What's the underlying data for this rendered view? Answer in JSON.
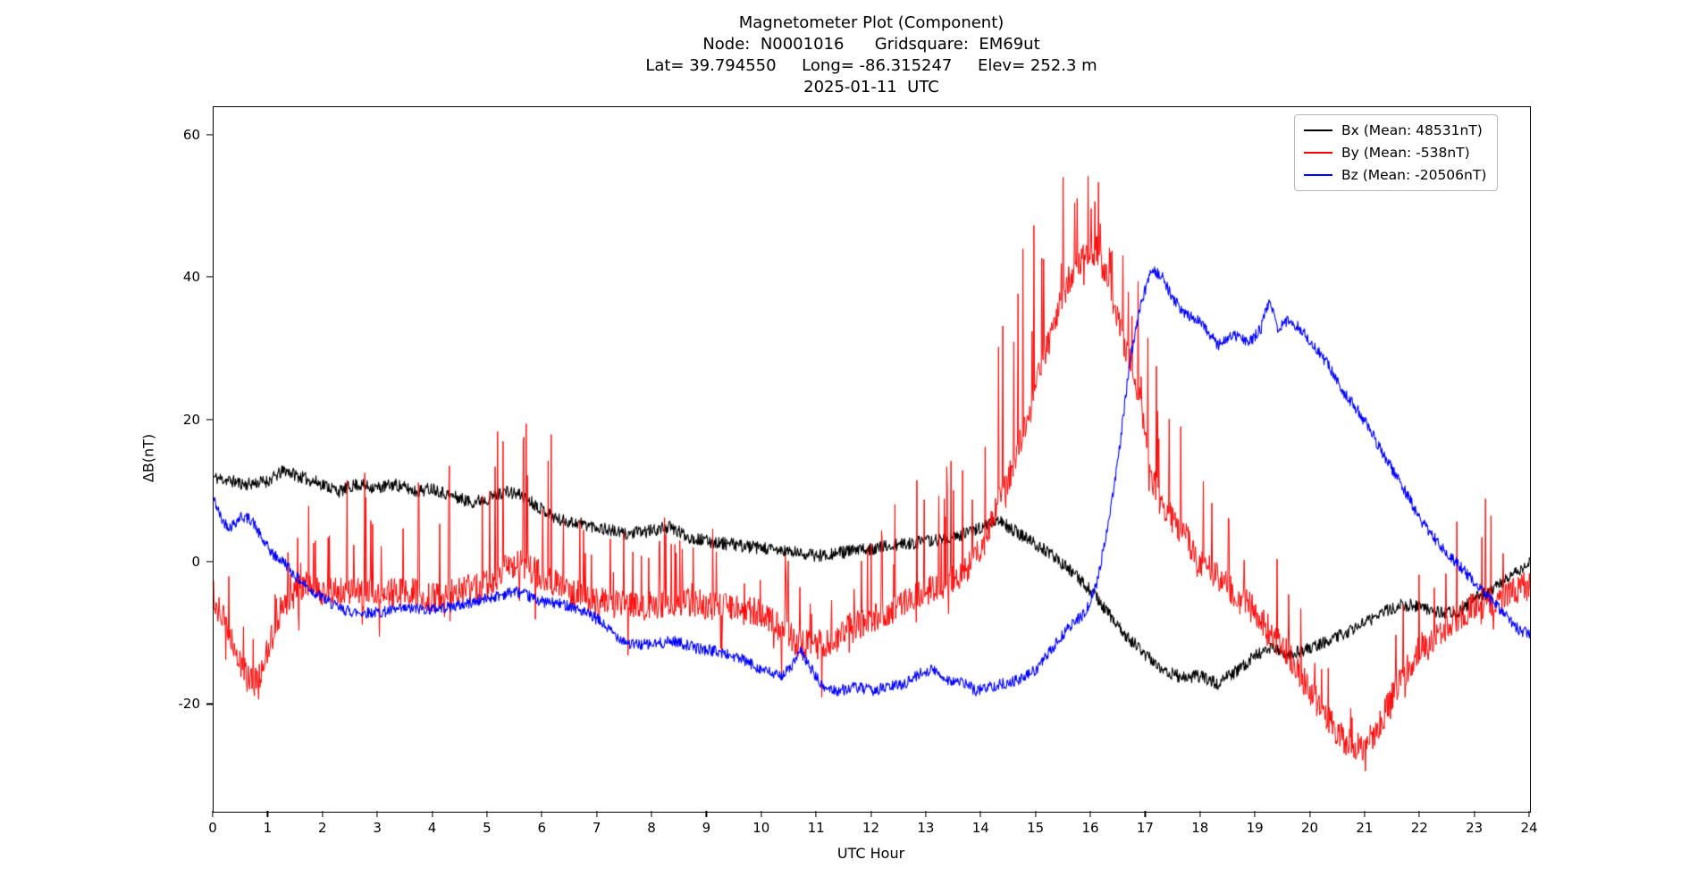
{
  "chart_data": {
    "type": "line",
    "title_lines": [
      "Magnetometer Plot (Component)",
      "Node:  N0001016      Gridsquare:  EM69ut",
      "Lat= 39.794550     Long= -86.315247     Elev= 252.3 m",
      "2025-01-11  UTC"
    ],
    "xlabel": "UTC Hour",
    "ylabel": "ΔB(nT)",
    "xlim": [
      0,
      24
    ],
    "ylim": [
      -35,
      64
    ],
    "xticks": [
      0,
      1,
      2,
      3,
      4,
      5,
      6,
      7,
      8,
      9,
      10,
      11,
      12,
      13,
      14,
      15,
      16,
      17,
      18,
      19,
      20,
      21,
      22,
      23,
      24
    ],
    "yticks": [
      -20,
      0,
      20,
      40,
      60
    ],
    "grid": false,
    "legend_position": "upper right",
    "samples_per_hour": 90,
    "legend": [
      {
        "label": "Bx (Mean: 48531nT)",
        "color": "#000000"
      },
      {
        "label": "By (Mean: -538nT)",
        "color": "#ff0000"
      },
      {
        "label": "Bz (Mean: -20506nT)",
        "color": "#0000ff"
      }
    ],
    "series": [
      {
        "name": "Bx",
        "color": "#000000",
        "seed": 11,
        "noise": 0.9,
        "linewidth": 1.1,
        "control": [
          [
            0,
            12
          ],
          [
            0.3,
            11.5
          ],
          [
            0.6,
            11
          ],
          [
            1,
            11.5
          ],
          [
            1.3,
            13
          ],
          [
            1.6,
            12
          ],
          [
            2,
            11
          ],
          [
            2.3,
            10
          ],
          [
            2.6,
            11
          ],
          [
            3,
            10.5
          ],
          [
            3.3,
            11
          ],
          [
            3.7,
            10
          ],
          [
            4,
            10.5
          ],
          [
            4.3,
            9.5
          ],
          [
            4.7,
            8.5
          ],
          [
            5,
            9
          ],
          [
            5.3,
            10
          ],
          [
            5.6,
            9.5
          ],
          [
            6,
            7.5
          ],
          [
            6.3,
            6
          ],
          [
            6.7,
            5.5
          ],
          [
            7,
            5
          ],
          [
            7.5,
            4
          ],
          [
            8,
            4.5
          ],
          [
            8.3,
            5
          ],
          [
            8.7,
            3.5
          ],
          [
            9,
            3
          ],
          [
            9.5,
            2.5
          ],
          [
            10,
            2
          ],
          [
            10.5,
            1.5
          ],
          [
            11,
            1
          ],
          [
            11.5,
            1.5
          ],
          [
            12,
            2
          ],
          [
            12.5,
            2.5
          ],
          [
            13,
            3
          ],
          [
            13.5,
            3.5
          ],
          [
            14,
            5
          ],
          [
            14.3,
            6
          ],
          [
            14.6,
            4.5
          ],
          [
            15,
            2.5
          ],
          [
            15.3,
            1
          ],
          [
            15.6,
            -1
          ],
          [
            16,
            -4
          ],
          [
            16.3,
            -7
          ],
          [
            16.6,
            -10
          ],
          [
            17,
            -13
          ],
          [
            17.3,
            -15
          ],
          [
            17.6,
            -16
          ],
          [
            18,
            -16
          ],
          [
            18.3,
            -17
          ],
          [
            18.6,
            -15.5
          ],
          [
            19,
            -13
          ],
          [
            19.3,
            -12
          ],
          [
            19.6,
            -13
          ],
          [
            20,
            -12
          ],
          [
            20.3,
            -11
          ],
          [
            20.6,
            -10
          ],
          [
            21,
            -8.5
          ],
          [
            21.3,
            -7
          ],
          [
            21.6,
            -6
          ],
          [
            22,
            -6
          ],
          [
            22.3,
            -7
          ],
          [
            22.7,
            -7
          ],
          [
            23,
            -5
          ],
          [
            23.3,
            -4
          ],
          [
            23.6,
            -2
          ],
          [
            24,
            0
          ]
        ]
      },
      {
        "name": "By",
        "color": "#ff0000",
        "seed": 27,
        "noise": 2.1,
        "linewidth": 1.0,
        "spike_prob": 0.07,
        "neg_spike_prob": 0.025,
        "control": [
          [
            0,
            -5
          ],
          [
            0.2,
            -8
          ],
          [
            0.4,
            -12
          ],
          [
            0.6,
            -16
          ],
          [
            0.8,
            -17
          ],
          [
            1,
            -12
          ],
          [
            1.2,
            -7
          ],
          [
            1.5,
            -4
          ],
          [
            1.8,
            -3
          ],
          [
            2,
            -4
          ],
          [
            2.5,
            -4
          ],
          [
            3,
            -4.5
          ],
          [
            3.5,
            -4
          ],
          [
            4,
            -5
          ],
          [
            4.5,
            -4
          ],
          [
            5,
            -3
          ],
          [
            5.3,
            -1
          ],
          [
            5.6,
            0
          ],
          [
            6,
            -2
          ],
          [
            6.5,
            -4
          ],
          [
            7,
            -5.5
          ],
          [
            7.5,
            -6
          ],
          [
            8,
            -6
          ],
          [
            8.5,
            -5.5
          ],
          [
            9,
            -6
          ],
          [
            9.5,
            -6.5
          ],
          [
            10,
            -7
          ],
          [
            10.3,
            -9
          ],
          [
            10.6,
            -11
          ],
          [
            11,
            -12
          ],
          [
            11.3,
            -11
          ],
          [
            11.6,
            -9
          ],
          [
            12,
            -8
          ],
          [
            12.5,
            -6
          ],
          [
            13,
            -4
          ],
          [
            13.3,
            -3
          ],
          [
            13.6,
            -2
          ],
          [
            14,
            2
          ],
          [
            14.3,
            8
          ],
          [
            14.6,
            14
          ],
          [
            15,
            25
          ],
          [
            15.3,
            33
          ],
          [
            15.6,
            40
          ],
          [
            15.9,
            43
          ],
          [
            16.1,
            44
          ],
          [
            16.3,
            40
          ],
          [
            16.5,
            34
          ],
          [
            16.7,
            28
          ],
          [
            16.9,
            22
          ],
          [
            17.1,
            12
          ],
          [
            17.4,
            7
          ],
          [
            17.7,
            4
          ],
          [
            18,
            0
          ],
          [
            18.3,
            -2
          ],
          [
            18.6,
            -4
          ],
          [
            19,
            -7
          ],
          [
            19.3,
            -10
          ],
          [
            19.6,
            -13
          ],
          [
            20,
            -18
          ],
          [
            20.3,
            -22
          ],
          [
            20.6,
            -25
          ],
          [
            21,
            -26
          ],
          [
            21.3,
            -22
          ],
          [
            21.6,
            -17
          ],
          [
            22,
            -12
          ],
          [
            22.3,
            -10
          ],
          [
            22.6,
            -8
          ],
          [
            23,
            -6
          ],
          [
            23.5,
            -5
          ],
          [
            24,
            -3
          ]
        ],
        "spike_env": [
          [
            0,
            8
          ],
          [
            1,
            6
          ],
          [
            2,
            14
          ],
          [
            3,
            16
          ],
          [
            4,
            18
          ],
          [
            5,
            22
          ],
          [
            5.5,
            20
          ],
          [
            6,
            20
          ],
          [
            7,
            12
          ],
          [
            8,
            13
          ],
          [
            9,
            10
          ],
          [
            10,
            8
          ],
          [
            10.5,
            10
          ],
          [
            11,
            8
          ],
          [
            12,
            14
          ],
          [
            12.5,
            18
          ],
          [
            13,
            16
          ],
          [
            13.5,
            22
          ],
          [
            14,
            24
          ],
          [
            14.5,
            32
          ],
          [
            15,
            28
          ],
          [
            15.5,
            18
          ],
          [
            16,
            15
          ],
          [
            16.5,
            8
          ],
          [
            17,
            18
          ],
          [
            17.5,
            14
          ],
          [
            18,
            20
          ],
          [
            18.5,
            14
          ],
          [
            19,
            18
          ],
          [
            19.5,
            16
          ],
          [
            20,
            8
          ],
          [
            20.5,
            5
          ],
          [
            21,
            6
          ],
          [
            21.5,
            12
          ],
          [
            22,
            16
          ],
          [
            22.5,
            10
          ],
          [
            23,
            20
          ],
          [
            23.5,
            12
          ],
          [
            24,
            17
          ]
        ],
        "neg_spike_env": [
          [
            0,
            5
          ],
          [
            10,
            5
          ],
          [
            10.3,
            9
          ],
          [
            11.3,
            9
          ],
          [
            11.7,
            4
          ],
          [
            20,
            3
          ],
          [
            24,
            3
          ]
        ]
      },
      {
        "name": "Bz",
        "color": "#0000ff",
        "seed": 42,
        "noise": 0.8,
        "linewidth": 1.1,
        "control": [
          [
            0,
            9
          ],
          [
            0.15,
            6
          ],
          [
            0.3,
            5
          ],
          [
            0.5,
            6.5
          ],
          [
            0.7,
            6
          ],
          [
            0.9,
            3
          ],
          [
            1.1,
            1
          ],
          [
            1.3,
            0
          ],
          [
            1.5,
            -2
          ],
          [
            1.8,
            -4
          ],
          [
            2,
            -5
          ],
          [
            2.3,
            -6.5
          ],
          [
            2.6,
            -7
          ],
          [
            3,
            -7
          ],
          [
            3.5,
            -6.5
          ],
          [
            4,
            -6.5
          ],
          [
            4.5,
            -6
          ],
          [
            5,
            -5
          ],
          [
            5.5,
            -4
          ],
          [
            6,
            -5.5
          ],
          [
            6.5,
            -6
          ],
          [
            7,
            -8
          ],
          [
            7.3,
            -10
          ],
          [
            7.6,
            -11.5
          ],
          [
            8,
            -11.5
          ],
          [
            8.4,
            -11
          ],
          [
            8.8,
            -12
          ],
          [
            9.2,
            -12.5
          ],
          [
            9.6,
            -13.5
          ],
          [
            10,
            -15
          ],
          [
            10.3,
            -16
          ],
          [
            10.5,
            -15
          ],
          [
            10.7,
            -12.5
          ],
          [
            10.9,
            -15
          ],
          [
            11.1,
            -17.5
          ],
          [
            11.4,
            -18
          ],
          [
            11.7,
            -17.5
          ],
          [
            12,
            -18
          ],
          [
            12.3,
            -17.5
          ],
          [
            12.6,
            -17
          ],
          [
            12.9,
            -15.5
          ],
          [
            13.1,
            -15
          ],
          [
            13.4,
            -16.5
          ],
          [
            13.7,
            -17
          ],
          [
            13.9,
            -18
          ],
          [
            14.1,
            -17.5
          ],
          [
            14.4,
            -17
          ],
          [
            14.7,
            -16.5
          ],
          [
            15,
            -15
          ],
          [
            15.3,
            -12
          ],
          [
            15.6,
            -9
          ],
          [
            15.9,
            -7
          ],
          [
            16.1,
            -3
          ],
          [
            16.3,
            5
          ],
          [
            16.5,
            15
          ],
          [
            16.7,
            28
          ],
          [
            16.9,
            36
          ],
          [
            17.1,
            41.5
          ],
          [
            17.3,
            40
          ],
          [
            17.5,
            37
          ],
          [
            17.7,
            35
          ],
          [
            18,
            34
          ],
          [
            18.3,
            30.5
          ],
          [
            18.6,
            32
          ],
          [
            18.9,
            31
          ],
          [
            19.1,
            33
          ],
          [
            19.25,
            37
          ],
          [
            19.4,
            33
          ],
          [
            19.6,
            34
          ],
          [
            19.8,
            33
          ],
          [
            20,
            31
          ],
          [
            20.3,
            28
          ],
          [
            20.6,
            24
          ],
          [
            20.9,
            21
          ],
          [
            21.2,
            17
          ],
          [
            21.5,
            13
          ],
          [
            21.8,
            9
          ],
          [
            22,
            6
          ],
          [
            22.3,
            3
          ],
          [
            22.6,
            0.5
          ],
          [
            22.9,
            -2
          ],
          [
            23.2,
            -4.5
          ],
          [
            23.5,
            -7
          ],
          [
            23.8,
            -9.5
          ],
          [
            24,
            -10
          ]
        ]
      }
    ]
  }
}
